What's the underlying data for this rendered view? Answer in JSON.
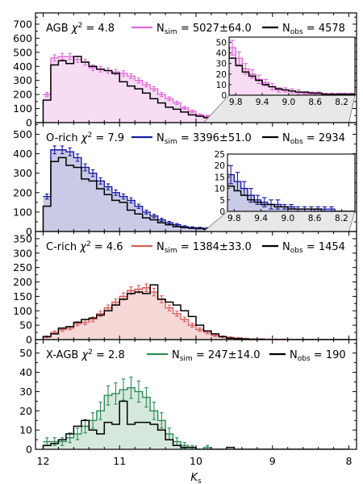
{
  "chart_data": {
    "type": "histogram",
    "xlabel": "K",
    "xlabel_sub": "s",
    "xlim": [
      12.1,
      7.9
    ],
    "xticks": [
      12,
      11,
      10,
      9,
      8
    ],
    "bin_edges": [
      12.0,
      11.9,
      11.8,
      11.7,
      11.6,
      11.5,
      11.4,
      11.3,
      11.2,
      11.1,
      11.0,
      10.9,
      10.8,
      10.7,
      10.6,
      10.5,
      10.4,
      10.3,
      10.2,
      10.1,
      10.0,
      9.9,
      9.8,
      9.7,
      9.6,
      9.5,
      9.4,
      9.3,
      9.2,
      9.1,
      9.0,
      8.9,
      8.8,
      8.7,
      8.6,
      8.5,
      8.4,
      8.3,
      8.2,
      8.1,
      8.0
    ],
    "panels": [
      {
        "name": "AGB",
        "chi2": "4.8",
        "sim_label": "5027±64.0",
        "obs_label": "4578",
        "color": "#e06ad6",
        "fill": "#f7dcf3",
        "ylim": [
          0,
          780
        ],
        "yticks": [
          0,
          100,
          200,
          300,
          400,
          500,
          600,
          700
        ],
        "sim": [
          200,
          460,
          470,
          470,
          450,
          430,
          390,
          380,
          370,
          360,
          350,
          330,
          300,
          270,
          240,
          200,
          170,
          140,
          105,
          80,
          55,
          45,
          35,
          25,
          20,
          15,
          12,
          8,
          5,
          5,
          4,
          3,
          2,
          2,
          2,
          1,
          1,
          1,
          1,
          1
        ],
        "sim_err": [
          15,
          22,
          22,
          22,
          21,
          21,
          20,
          20,
          19,
          19,
          19,
          18,
          17,
          16,
          15,
          14,
          13,
          12,
          10,
          9,
          7,
          7,
          6,
          5,
          4,
          4,
          3,
          3,
          2,
          2,
          2,
          2,
          1,
          1,
          1,
          1,
          1,
          1,
          1,
          1
        ],
        "obs": [
          160,
          410,
          440,
          420,
          470,
          430,
          400,
          380,
          370,
          350,
          290,
          260,
          240,
          210,
          170,
          140,
          110,
          95,
          75,
          55,
          45,
          35,
          28,
          22,
          18,
          14,
          10,
          8,
          6,
          5,
          4,
          3,
          3,
          2,
          2,
          1,
          1,
          1,
          1,
          1
        ],
        "inset": {
          "xlim": [
            9.9,
            8.0
          ],
          "xticks": [
            9.8,
            9.4,
            9.0,
            8.6,
            8.2
          ],
          "ylim": [
            0,
            55
          ],
          "yticks": [
            0,
            10,
            20,
            30,
            40,
            50
          ]
        }
      },
      {
        "name": "O-rich",
        "chi2": "7.9",
        "sim_label": "3396±51.0",
        "obs_label": "2934",
        "color": "#1a1aa0",
        "fill": "#c9cae6",
        "ylim": [
          0,
          560
        ],
        "yticks": [
          0,
          100,
          200,
          300,
          400,
          500
        ],
        "sim": [
          180,
          420,
          420,
          410,
          380,
          330,
          300,
          260,
          230,
          200,
          180,
          160,
          130,
          100,
          80,
          60,
          45,
          35,
          25,
          20,
          18,
          16,
          13,
          10,
          7,
          5,
          4,
          3,
          3,
          2,
          2,
          1,
          1,
          1,
          1,
          1,
          1,
          0,
          0,
          0
        ],
        "sim_err": [
          13,
          20,
          20,
          20,
          19,
          18,
          17,
          16,
          15,
          14,
          13,
          13,
          11,
          10,
          9,
          8,
          7,
          6,
          5,
          4,
          4,
          4,
          4,
          3,
          3,
          2,
          2,
          2,
          2,
          1,
          1,
          1,
          1,
          1,
          1,
          1,
          1,
          0,
          0,
          0
        ],
        "obs": [
          130,
          360,
          380,
          340,
          330,
          270,
          260,
          220,
          190,
          160,
          150,
          110,
          90,
          70,
          60,
          45,
          35,
          25,
          20,
          17,
          15,
          11,
          9,
          7,
          5,
          4,
          3,
          3,
          2,
          2,
          1,
          1,
          1,
          1,
          1,
          0,
          0,
          0,
          0,
          0
        ],
        "inset": {
          "xlim": [
            9.9,
            8.0
          ],
          "xticks": [
            9.8,
            9.4,
            9.0,
            8.6,
            8.2
          ],
          "ylim": [
            0,
            25
          ],
          "yticks": [
            0,
            5,
            10,
            15,
            20,
            25
          ]
        }
      },
      {
        "name": "C-rich",
        "chi2": "4.6",
        "sim_label": "1384±33.0",
        "obs_label": "1454",
        "color": "#d95b5b",
        "fill": "#f5d8d6",
        "ylim": [
          0,
          375
        ],
        "yticks": [
          0,
          50,
          100,
          150,
          200,
          250,
          300,
          350
        ],
        "sim": [
          10,
          25,
          35,
          40,
          55,
          60,
          70,
          90,
          110,
          130,
          150,
          170,
          175,
          180,
          165,
          140,
          110,
          90,
          70,
          50,
          35,
          25,
          15,
          10,
          7,
          5,
          3,
          2,
          2,
          1,
          1,
          1,
          0,
          0,
          0,
          0,
          0,
          0,
          0,
          0
        ],
        "sim_err": [
          3,
          5,
          6,
          6,
          7,
          8,
          8,
          9,
          10,
          11,
          12,
          13,
          13,
          13,
          13,
          12,
          10,
          9,
          8,
          7,
          6,
          5,
          4,
          3,
          3,
          2,
          2,
          1,
          1,
          1,
          1,
          1,
          0,
          0,
          0,
          0,
          0,
          0,
          0,
          0
        ],
        "obs": [
          10,
          20,
          40,
          45,
          60,
          70,
          75,
          85,
          100,
          120,
          140,
          160,
          165,
          160,
          190,
          140,
          130,
          120,
          100,
          80,
          50,
          30,
          20,
          10,
          5,
          3,
          2,
          1,
          1,
          0,
          0,
          0,
          0,
          0,
          0,
          0,
          0,
          0,
          0,
          0
        ]
      },
      {
        "name": "X-AGB",
        "chi2": "2.8",
        "sim_label": "247±14.0",
        "obs_label": "190",
        "color": "#2e8b57",
        "fill": "#d6e8dc",
        "ylim": [
          0,
          57
        ],
        "yticks": [
          0,
          10,
          20,
          30,
          40,
          50
        ],
        "sim": [
          4,
          4,
          4,
          6,
          8,
          12,
          15,
          20,
          28,
          29,
          31,
          32,
          30,
          27,
          20,
          15,
          8,
          4,
          2,
          1,
          0,
          1,
          0,
          0,
          0,
          0,
          0,
          0,
          0,
          0,
          0,
          0,
          0,
          0,
          0,
          0,
          0,
          0,
          0,
          0
        ],
        "sim_err": [
          2,
          2,
          2,
          2.5,
          3,
          3.5,
          4,
          4.5,
          5,
          5.5,
          5.5,
          5.5,
          5.5,
          5,
          4.5,
          4,
          3,
          2,
          1.5,
          1,
          0,
          1,
          0,
          0,
          0,
          0,
          0,
          0,
          0,
          0,
          0,
          0,
          0,
          0,
          0,
          0,
          0,
          0,
          0,
          0
        ],
        "obs": [
          2,
          3,
          5,
          8,
          12,
          15,
          10,
          8,
          14,
          13,
          25,
          13,
          14,
          14,
          13,
          10,
          5,
          2,
          1,
          1,
          0,
          0,
          0,
          0,
          1,
          0,
          0,
          0,
          0,
          0,
          0,
          0,
          0,
          0,
          0,
          0,
          0,
          0,
          0,
          0
        ]
      }
    ]
  }
}
